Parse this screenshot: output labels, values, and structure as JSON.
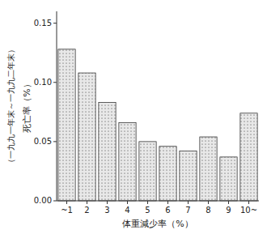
{
  "chart_data": {
    "type": "bar",
    "categories": [
      "~1",
      "2",
      "3",
      "4",
      "5",
      "6",
      "7",
      "8",
      "9",
      "10~"
    ],
    "values": [
      0.128,
      0.108,
      0.083,
      0.066,
      0.05,
      0.046,
      0.042,
      0.054,
      0.037,
      0.074
    ],
    "color": "#e8e8e8",
    "ylim": [
      0.0,
      0.16
    ],
    "yticks": [
      {
        "value": 0.0,
        "label": "0.00"
      },
      {
        "value": 0.05,
        "label": "0.05"
      },
      {
        "value": 0.1,
        "label": "0.10"
      },
      {
        "value": 0.15,
        "label": "0.15"
      }
    ],
    "xlabel": "体重減少率（%）",
    "ylabel": [
      "死亡率（%）",
      "（一九九一年末～一九九二年末）"
    ],
    "grid": false
  }
}
